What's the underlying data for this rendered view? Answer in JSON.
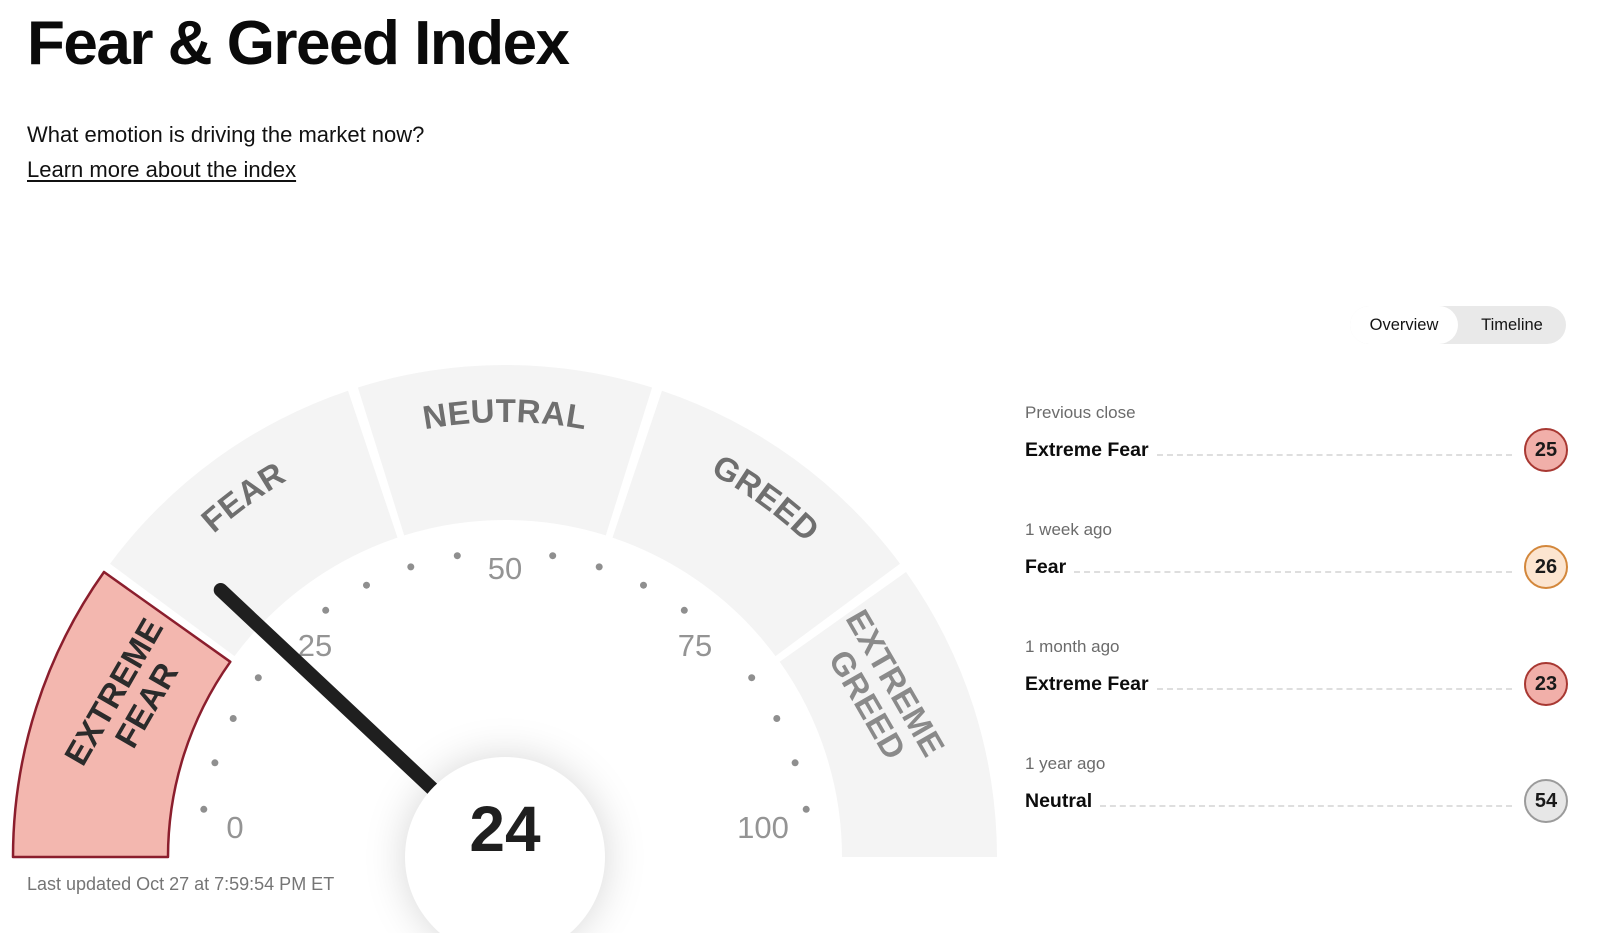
{
  "header": {
    "title": "Fear & Greed Index",
    "subtitle": "What emotion is driving the market now?",
    "link_label": "Learn more about the index"
  },
  "toggle": {
    "overview_label": "Overview",
    "timeline_label": "Timeline"
  },
  "chart_data": {
    "type": "gauge",
    "title": "Fear & Greed Index",
    "value": 24,
    "current_label": "Extreme Fear",
    "min": 0,
    "max": 100,
    "axis_ticks": [
      "0",
      "25",
      "50",
      "75",
      "100"
    ],
    "segments": [
      {
        "label": "Extreme Fear",
        "line1": "EXTREME",
        "line2": "FEAR",
        "active": true
      },
      {
        "label": "Fear",
        "display": "FEAR"
      },
      {
        "label": "Neutral",
        "display": "NEUTRAL"
      },
      {
        "label": "Greed",
        "display": "GREED"
      },
      {
        "label": "Extreme Greed",
        "line1": "EXTREME",
        "line2": "GREED"
      }
    ],
    "legend_position": "none",
    "grid": false
  },
  "history": [
    {
      "period": "Previous close",
      "label": "Extreme Fear",
      "value": "25",
      "tone": "extreme-fear"
    },
    {
      "period": "1 week ago",
      "label": "Fear",
      "value": "26",
      "tone": "fear"
    },
    {
      "period": "1 month ago",
      "label": "Extreme Fear",
      "value": "23",
      "tone": "extreme-fear"
    },
    {
      "period": "1 year ago",
      "label": "Neutral",
      "value": "54",
      "tone": "neutral"
    }
  ],
  "footer": {
    "last_updated": "Last updated Oct 27 at 7:59:54 PM ET"
  },
  "colors": {
    "extreme-fear-fill": "#f3b7af",
    "extreme-fear-stroke": "#8b1e2d",
    "segment-fill": "#f4f4f4",
    "segment-label": "#6f6f6f",
    "needle": "#1f1f1f",
    "badge-extreme-fear-bg": "#f1afa9",
    "badge-extreme-fear-border": "#a83832",
    "badge-fear-bg": "#fce5d0",
    "badge-fear-border": "#d3873b",
    "badge-neutral-bg": "#e7e7e7",
    "badge-neutral-border": "#9b9b9b"
  }
}
